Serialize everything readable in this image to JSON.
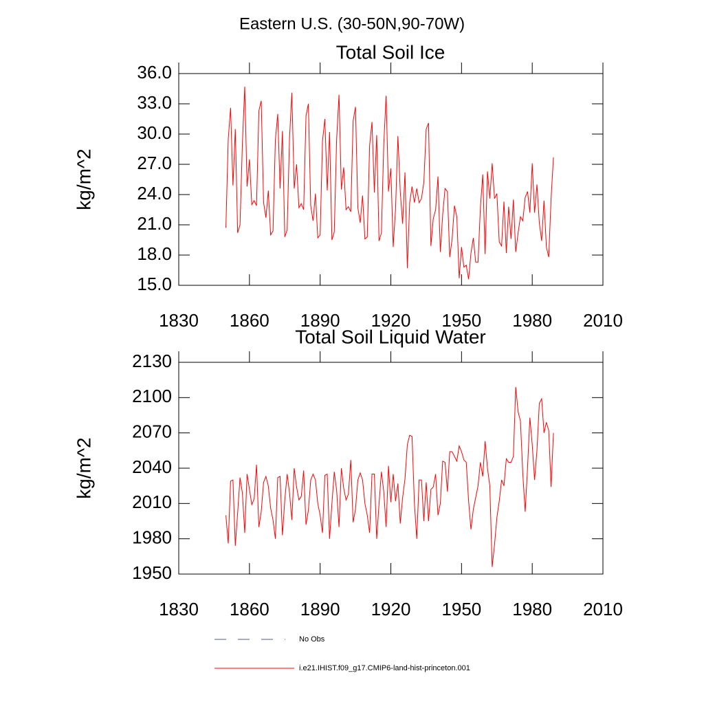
{
  "title": "Eastern U.S. (30-50N,90-70W)",
  "legend": [
    {
      "name": "No Obs",
      "color": "#4b5a8a",
      "dashed": true
    },
    {
      "name": "i.e21.IHIST.f09_g17.CMIP6-land-hist-princeton.001",
      "color": "#ff0000",
      "dashed": false
    }
  ],
  "chart_data": [
    {
      "type": "line",
      "title": "Total Soil Ice",
      "ylabel": "kg/m^2",
      "xlim": [
        1830,
        2010
      ],
      "xticks": [
        1830,
        1860,
        1890,
        1920,
        1950,
        1980,
        2010
      ],
      "ylim": [
        15,
        36
      ],
      "yticks": [
        {
          "value": 15,
          "label": "15.0"
        },
        {
          "value": 18,
          "label": "18.0"
        },
        {
          "value": 21,
          "label": "21.0"
        },
        {
          "value": 24,
          "label": "24.0"
        },
        {
          "value": 27,
          "label": "27.0"
        },
        {
          "value": 30,
          "label": "30.0"
        },
        {
          "value": 33,
          "label": "33.0"
        },
        {
          "value": 36,
          "label": "36.0"
        }
      ],
      "x": [
        1850,
        1851,
        1852,
        1853,
        1854,
        1855,
        1856,
        1857,
        1858,
        1859,
        1860,
        1861,
        1862,
        1863,
        1864,
        1865,
        1866,
        1867,
        1868,
        1869,
        1870,
        1871,
        1872,
        1873,
        1874,
        1875,
        1876,
        1877,
        1878,
        1879,
        1880,
        1881,
        1882,
        1883,
        1884,
        1885,
        1886,
        1887,
        1888,
        1889,
        1890,
        1891,
        1892,
        1893,
        1894,
        1895,
        1896,
        1897,
        1898,
        1899,
        1900,
        1901,
        1902,
        1903,
        1904,
        1905,
        1906,
        1907,
        1908,
        1909,
        1910,
        1911,
        1912,
        1913,
        1914,
        1915,
        1916,
        1917,
        1918,
        1919,
        1920,
        1921,
        1922,
        1923,
        1924,
        1925,
        1926,
        1927,
        1928,
        1929,
        1930,
        1931,
        1932,
        1933,
        1934,
        1935,
        1936,
        1937,
        1938,
        1939,
        1940,
        1941,
        1942,
        1943,
        1944,
        1945,
        1946,
        1947,
        1948,
        1949,
        1950,
        1951,
        1952,
        1953,
        1954,
        1955,
        1956,
        1957,
        1958,
        1959,
        1960,
        1961,
        1962,
        1963,
        1964,
        1965,
        1966,
        1967,
        1968,
        1969,
        1970,
        1971,
        1972,
        1973,
        1974,
        1975,
        1976,
        1977,
        1978,
        1979,
        1980,
        1981,
        1982,
        1983,
        1984,
        1985,
        1986,
        1987,
        1988,
        1989
      ],
      "series": [
        {
          "color": "#ff0000",
          "values": [
            20.7,
            29.5,
            32.6,
            24.9,
            30.5,
            20.2,
            21.0,
            29.0,
            34.7,
            24.8,
            27.5,
            23.0,
            23.4,
            22.9,
            32.3,
            33.3,
            23.2,
            21.7,
            24.4,
            20.0,
            20.4,
            29.4,
            32.0,
            24.6,
            30.3,
            19.8,
            20.5,
            29.6,
            34.1,
            24.6,
            27.0,
            22.7,
            23.1,
            22.5,
            31.8,
            33.0,
            22.9,
            21.4,
            24.1,
            19.7,
            20.0,
            29.3,
            31.5,
            24.4,
            30.2,
            19.5,
            20.3,
            29.5,
            33.9,
            24.5,
            26.7,
            22.5,
            22.8,
            22.3,
            31.3,
            32.7,
            22.7,
            21.2,
            23.9,
            19.6,
            19.8,
            28.9,
            31.2,
            24.2,
            29.9,
            19.4,
            20.2,
            29.0,
            33.8,
            24.3,
            26.6,
            18.8,
            22.6,
            29.8,
            24.3,
            21.1,
            26.2,
            16.7,
            23.2,
            24.8,
            23.2,
            24.6,
            23.2,
            23.6,
            25.2,
            30.5,
            31.1,
            18.9,
            21.6,
            22.5,
            25.8,
            18.3,
            22.0,
            24.6,
            24.3,
            17.8,
            19.6,
            22.9,
            21.8,
            15.7,
            18.8,
            16.8,
            17.0,
            15.6,
            18.2,
            19.7,
            17.3,
            17.3,
            22.7,
            26.0,
            18.1,
            26.3,
            23.6,
            27.1,
            23.6,
            24.1,
            19.3,
            18.9,
            23.3,
            18.2,
            22.8,
            19.6,
            23.5,
            18.3,
            20.2,
            21.8,
            21.4,
            23.7,
            24.3,
            22.2,
            27.1,
            22.2,
            25.0,
            21.2,
            19.4,
            23.4,
            18.8,
            17.8,
            23.6,
            27.7
          ]
        }
      ]
    },
    {
      "type": "line",
      "title": "Total Soil Liquid Water",
      "ylabel": "kg/m^2",
      "xlim": [
        1830,
        2010
      ],
      "xticks": [
        1830,
        1860,
        1890,
        1920,
        1950,
        1980,
        2010
      ],
      "ylim": [
        1950,
        2130
      ],
      "yticks": [
        1950,
        1980,
        2010,
        2040,
        2070,
        2100,
        2130
      ],
      "x": [
        1850,
        1851,
        1852,
        1853,
        1854,
        1855,
        1856,
        1857,
        1858,
        1859,
        1860,
        1861,
        1862,
        1863,
        1864,
        1865,
        1866,
        1867,
        1868,
        1869,
        1870,
        1871,
        1872,
        1873,
        1874,
        1875,
        1876,
        1877,
        1878,
        1879,
        1880,
        1881,
        1882,
        1883,
        1884,
        1885,
        1886,
        1887,
        1888,
        1889,
        1890,
        1891,
        1892,
        1893,
        1894,
        1895,
        1896,
        1897,
        1898,
        1899,
        1900,
        1901,
        1902,
        1903,
        1904,
        1905,
        1906,
        1907,
        1908,
        1909,
        1910,
        1911,
        1912,
        1913,
        1914,
        1915,
        1916,
        1917,
        1918,
        1919,
        1920,
        1921,
        1922,
        1923,
        1924,
        1925,
        1926,
        1927,
        1928,
        1929,
        1930,
        1931,
        1932,
        1933,
        1934,
        1935,
        1936,
        1937,
        1938,
        1939,
        1940,
        1941,
        1942,
        1943,
        1944,
        1945,
        1946,
        1947,
        1948,
        1949,
        1950,
        1951,
        1952,
        1953,
        1954,
        1955,
        1956,
        1957,
        1958,
        1959,
        1960,
        1961,
        1962,
        1963,
        1964,
        1965,
        1966,
        1967,
        1968,
        1969,
        1970,
        1971,
        1972,
        1973,
        1974,
        1975,
        1976,
        1977,
        1978,
        1979,
        1980,
        1981,
        1982,
        1983,
        1984,
        1985,
        1986,
        1987,
        1988,
        1989
      ],
      "series": [
        {
          "color": "#ff0000",
          "values": [
            2000,
            1976,
            2029,
            2030,
            1974,
            2002,
            2032,
            2019,
            1985,
            2035,
            2022,
            2009,
            2014,
            2043,
            1990,
            2003,
            2028,
            2033,
            2025,
            2006,
            1996,
            1980,
            2032,
            2033,
            1983,
            2013,
            2035,
            2019,
            1996,
            2040,
            2024,
            2013,
            2016,
            2038,
            1992,
            2004,
            2030,
            2035,
            2030,
            2010,
            2000,
            1985,
            2034,
            2035,
            1980,
            2010,
            2037,
            2021,
            1990,
            2040,
            2023,
            2013,
            2018,
            2047,
            1994,
            2005,
            2030,
            2036,
            2030,
            2010,
            2000,
            1985,
            2035,
            2035,
            1980,
            2010,
            2037,
            2020,
            1990,
            2042,
            2011,
            2035,
            2012,
            2027,
            1993,
            2015,
            2031,
            2060,
            2068,
            2067,
            2010,
            1980,
            2030,
            2030,
            1995,
            2028,
            1995,
            2022,
            2024,
            2035,
            2000,
            2010,
            2046,
            2045,
            2020,
            2054,
            2054,
            2050,
            2046,
            2059,
            2054,
            2047,
            2045,
            2012,
            1988,
            2005,
            2015,
            2025,
            2045,
            2033,
            2063,
            2040,
            2025,
            1956,
            1975,
            1998,
            2012,
            2030,
            2025,
            2048,
            2045,
            2045,
            2050,
            2109,
            2088,
            2080,
            2035,
            2003,
            2040,
            2083,
            2060,
            2030,
            2055,
            2095,
            2099,
            2070,
            2079,
            2072,
            2024,
            2070
          ]
        }
      ]
    }
  ]
}
